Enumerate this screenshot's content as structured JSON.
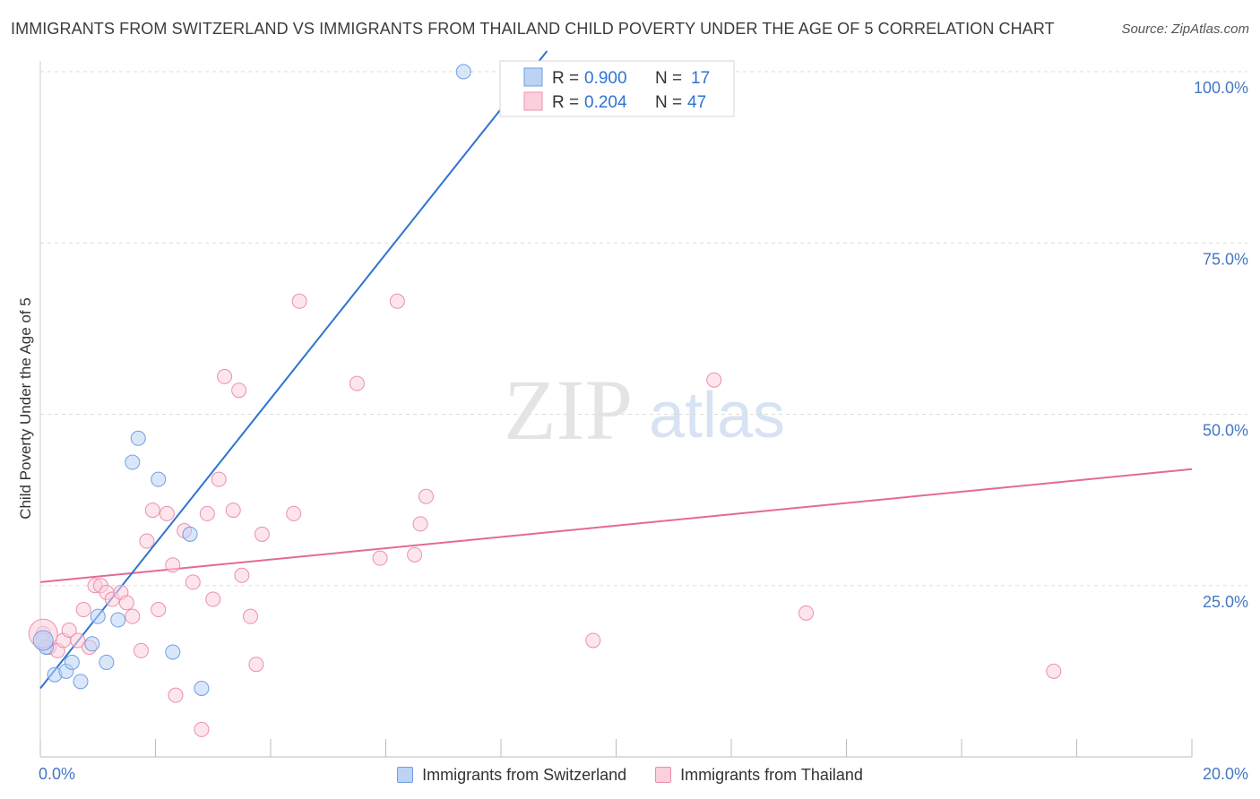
{
  "title": "IMMIGRANTS FROM SWITZERLAND VS IMMIGRANTS FROM THAILAND CHILD POVERTY UNDER THE AGE OF 5 CORRELATION CHART",
  "source": "Source: ZipAtlas.com",
  "watermark": {
    "zip": "ZIP",
    "atlas": "atlas"
  },
  "colors": {
    "blue_line": "#2f73d1",
    "blue_fill": "#bcd3f6",
    "blue_stroke": "#6f9fe0",
    "pink_line": "#e46a94",
    "pink_fill": "#fbd0dd",
    "pink_stroke": "#eb8fae",
    "tick_label": "#4477c4",
    "grid": "#dddddd"
  },
  "stats_box": {
    "rows": [
      {
        "r_label": "R =",
        "r_value": "0.900",
        "n_label": "N =",
        "n_value": "17"
      },
      {
        "r_label": "R =",
        "r_value": "0.204",
        "n_label": "N =",
        "n_value": "47"
      }
    ]
  },
  "legend": {
    "items": [
      {
        "label": "Immigrants from Switzerland"
      },
      {
        "label": "Immigrants from Thailand"
      }
    ]
  },
  "chart_data": {
    "type": "scatter",
    "title": "IMMIGRANTS FROM SWITZERLAND VS IMMIGRANTS FROM THAILAND CHILD POVERTY UNDER THE AGE OF 5 CORRELATION CHART",
    "xlabel": "",
    "ylabel": "Child Poverty Under the Age of 5",
    "xlim": [
      0,
      20
    ],
    "ylim": [
      0,
      100
    ],
    "x_tick_labels": [
      "0.0%",
      "20.0%"
    ],
    "y_ticks": [
      25,
      50,
      75,
      100
    ],
    "y_tick_labels": [
      "25.0%",
      "50.0%",
      "75.0%",
      "100.0%"
    ],
    "grid": true,
    "series": [
      {
        "name": "Immigrants from Switzerland",
        "r": 0.9,
        "n": 17,
        "trend": {
          "x": [
            0.0,
            8.8
          ],
          "y": [
            10.0,
            103.0
          ]
        },
        "points": [
          {
            "x": 0.05,
            "y": 17.0
          },
          {
            "x": 0.25,
            "y": 12.0
          },
          {
            "x": 0.45,
            "y": 12.5
          },
          {
            "x": 0.55,
            "y": 13.8
          },
          {
            "x": 0.7,
            "y": 11.0
          },
          {
            "x": 0.9,
            "y": 16.5
          },
          {
            "x": 1.0,
            "y": 20.5
          },
          {
            "x": 1.15,
            "y": 13.8
          },
          {
            "x": 1.35,
            "y": 20.0
          },
          {
            "x": 1.6,
            "y": 43.0
          },
          {
            "x": 1.7,
            "y": 46.5
          },
          {
            "x": 2.05,
            "y": 40.5
          },
          {
            "x": 2.3,
            "y": 15.3
          },
          {
            "x": 2.6,
            "y": 32.5
          },
          {
            "x": 2.8,
            "y": 10.0
          },
          {
            "x": 7.35,
            "y": 100.0
          },
          {
            "x": 0.1,
            "y": 16.0
          }
        ]
      },
      {
        "name": "Immigrants from Thailand",
        "r": 0.204,
        "n": 47,
        "trend": {
          "x": [
            0.0,
            20.0
          ],
          "y": [
            25.5,
            42.0
          ]
        },
        "points": [
          {
            "x": 0.05,
            "y": 18.0
          },
          {
            "x": 0.15,
            "y": 16.0
          },
          {
            "x": 0.3,
            "y": 15.5
          },
          {
            "x": 0.4,
            "y": 17.0
          },
          {
            "x": 0.5,
            "y": 18.5
          },
          {
            "x": 0.65,
            "y": 17.0
          },
          {
            "x": 0.75,
            "y": 21.5
          },
          {
            "x": 0.85,
            "y": 16.0
          },
          {
            "x": 0.95,
            "y": 25.0
          },
          {
            "x": 1.05,
            "y": 25.0
          },
          {
            "x": 1.15,
            "y": 24.0
          },
          {
            "x": 1.25,
            "y": 23.0
          },
          {
            "x": 1.4,
            "y": 24.0
          },
          {
            "x": 1.5,
            "y": 22.5
          },
          {
            "x": 1.6,
            "y": 20.5
          },
          {
            "x": 1.75,
            "y": 15.5
          },
          {
            "x": 1.85,
            "y": 31.5
          },
          {
            "x": 1.95,
            "y": 36.0
          },
          {
            "x": 2.05,
            "y": 21.5
          },
          {
            "x": 2.2,
            "y": 35.5
          },
          {
            "x": 2.3,
            "y": 28.0
          },
          {
            "x": 2.35,
            "y": 9.0
          },
          {
            "x": 2.5,
            "y": 33.0
          },
          {
            "x": 2.65,
            "y": 25.5
          },
          {
            "x": 2.8,
            "y": 4.0
          },
          {
            "x": 2.9,
            "y": 35.5
          },
          {
            "x": 3.0,
            "y": 23.0
          },
          {
            "x": 3.1,
            "y": 40.5
          },
          {
            "x": 3.2,
            "y": 55.5
          },
          {
            "x": 3.35,
            "y": 36.0
          },
          {
            "x": 3.45,
            "y": 53.5
          },
          {
            "x": 3.5,
            "y": 26.5
          },
          {
            "x": 3.65,
            "y": 20.5
          },
          {
            "x": 3.75,
            "y": 13.5
          },
          {
            "x": 3.85,
            "y": 32.5
          },
          {
            "x": 4.4,
            "y": 35.5
          },
          {
            "x": 4.5,
            "y": 66.5
          },
          {
            "x": 5.5,
            "y": 54.5
          },
          {
            "x": 5.9,
            "y": 29.0
          },
          {
            "x": 6.2,
            "y": 66.5
          },
          {
            "x": 6.5,
            "y": 29.5
          },
          {
            "x": 6.6,
            "y": 34.0
          },
          {
            "x": 6.7,
            "y": 38.0
          },
          {
            "x": 9.6,
            "y": 17.0
          },
          {
            "x": 11.7,
            "y": 55.0
          },
          {
            "x": 13.3,
            "y": 21.0
          },
          {
            "x": 17.6,
            "y": 12.5
          }
        ]
      }
    ]
  }
}
